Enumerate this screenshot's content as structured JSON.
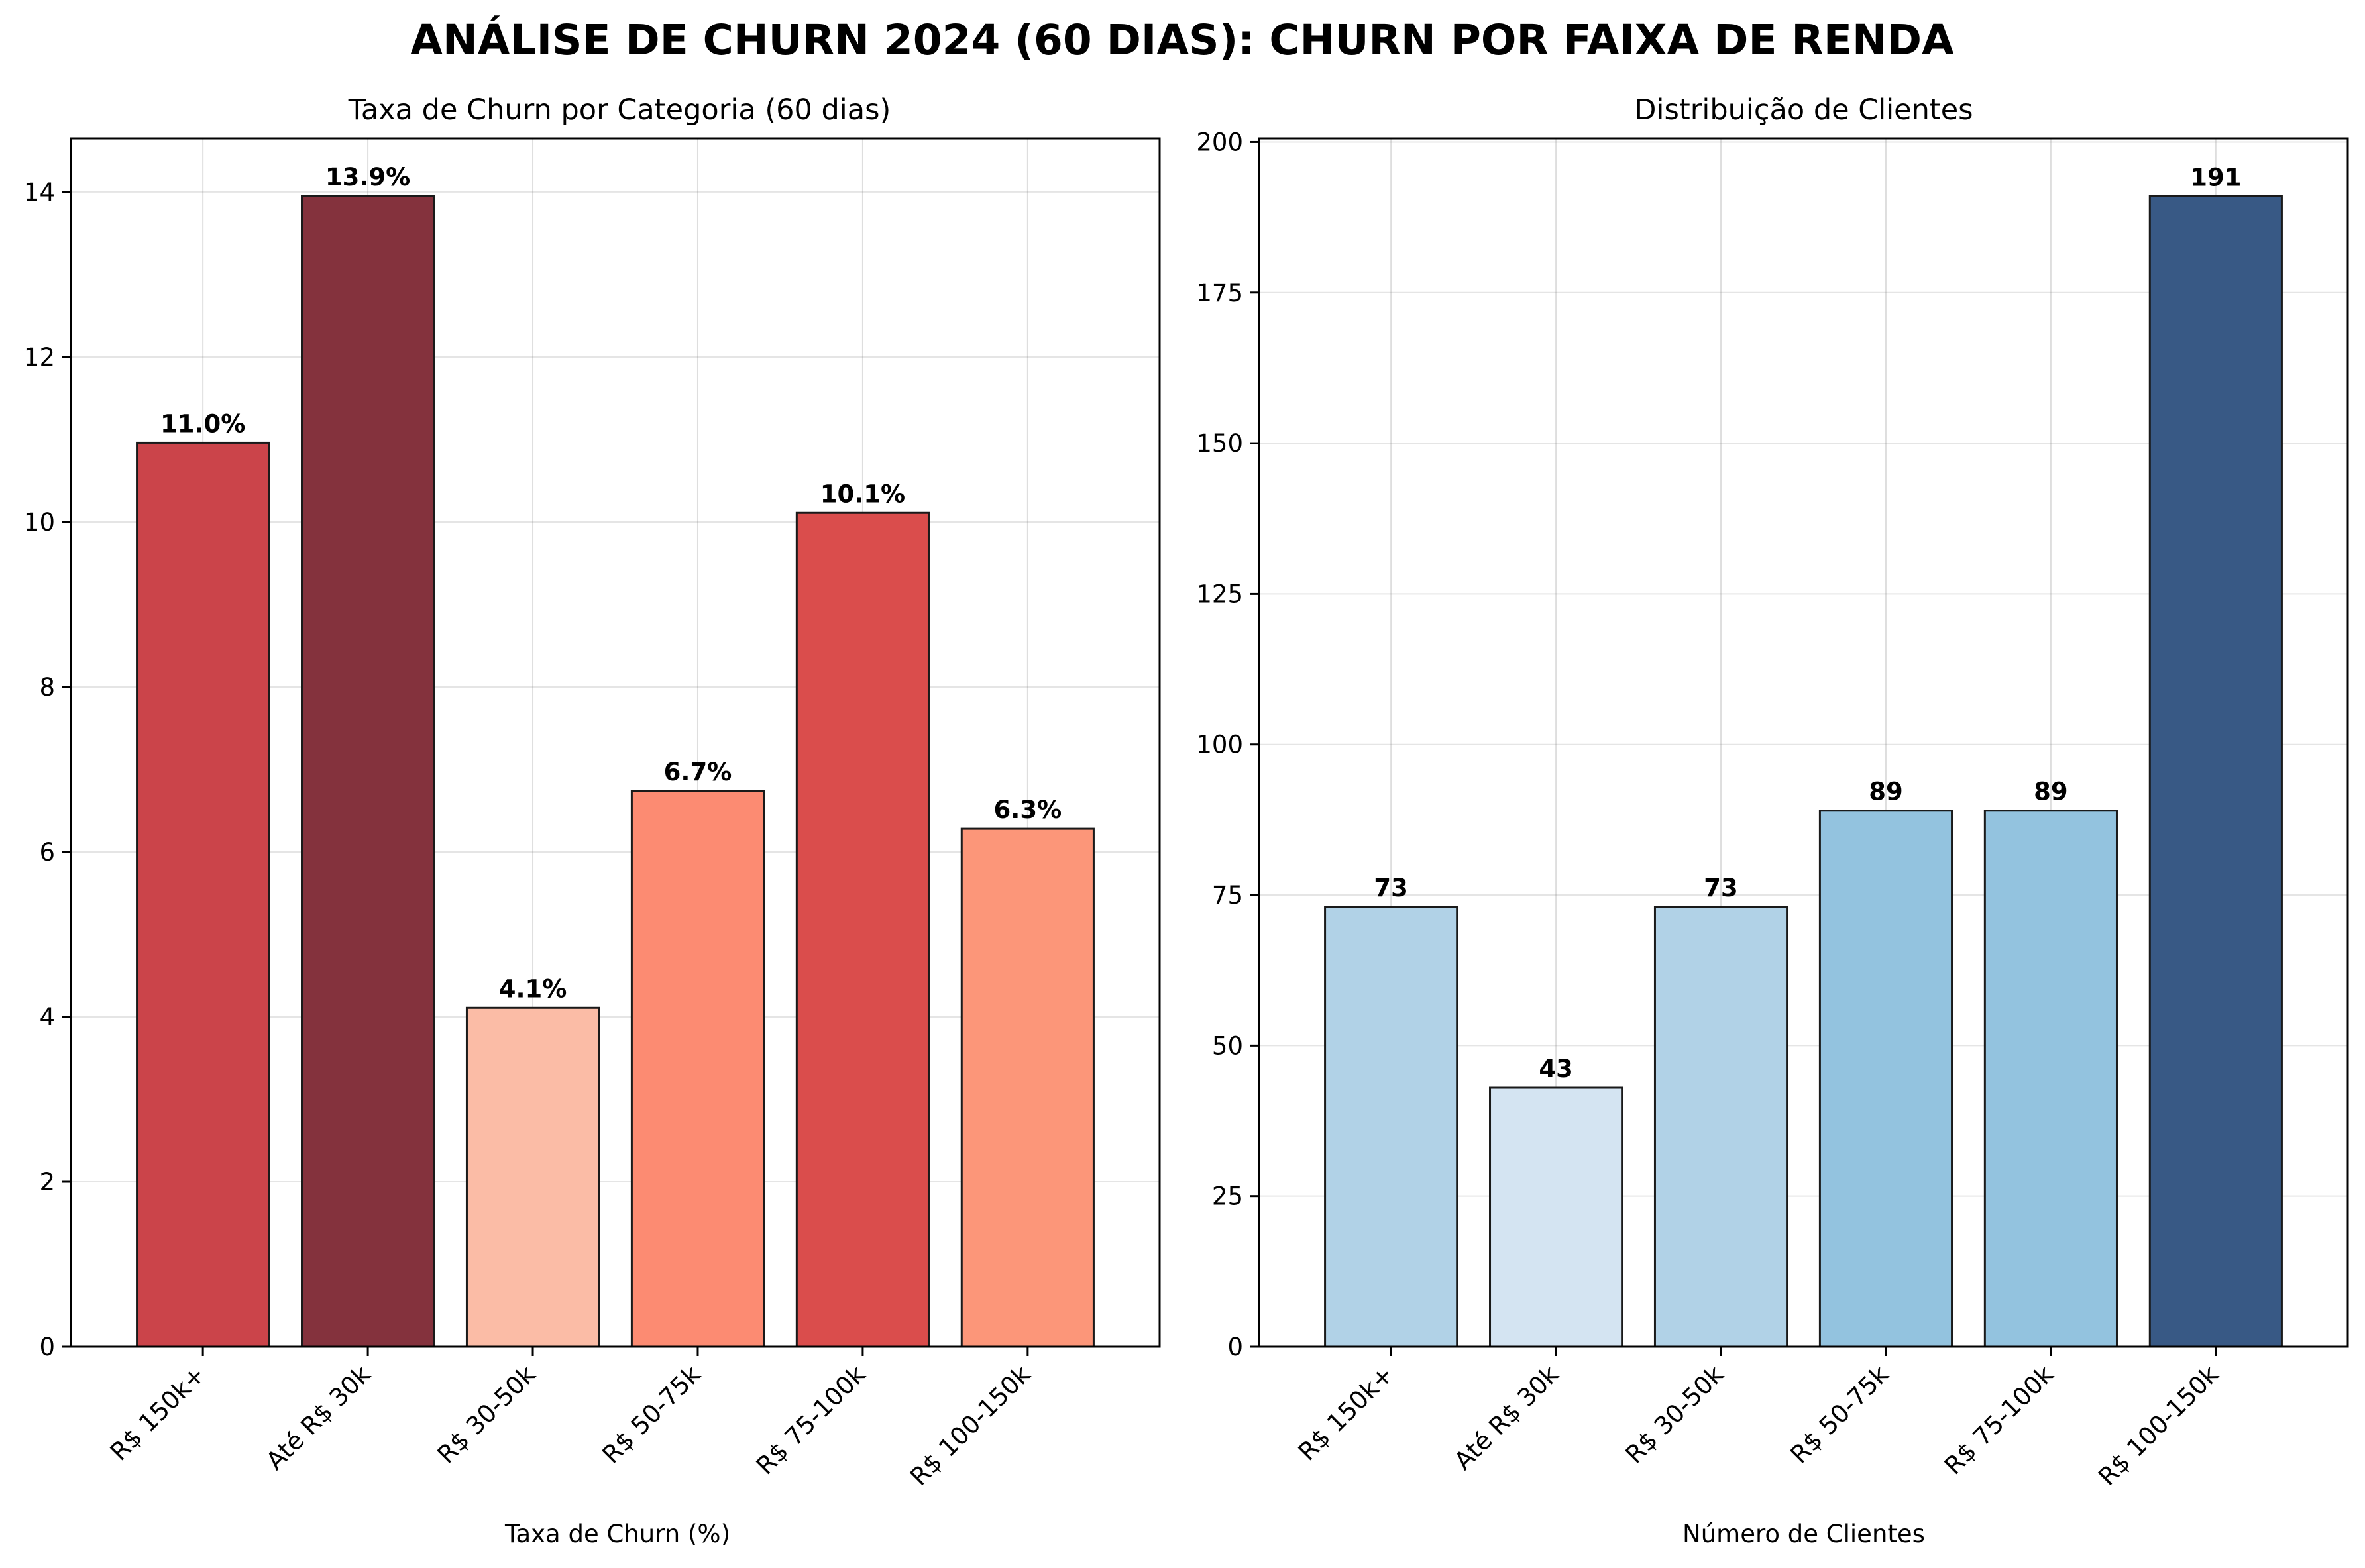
{
  "title": "ANÁLISE DE CHURN 2024 (60 DIAS): CHURN POR FAIXA DE RENDA",
  "chart_data": [
    {
      "type": "bar",
      "title": "Taxa de Churn por Categoria (60 dias)",
      "xlabel": "Taxa de Churn (%)",
      "ylabel": "",
      "categories": [
        "R$ 150k+",
        "Até R$ 30k",
        "R$ 30-50k",
        "R$ 50-75k",
        "R$ 75-100k",
        "R$ 100-150k"
      ],
      "values": [
        10.96,
        13.95,
        4.11,
        6.74,
        10.11,
        6.28
      ],
      "value_labels": [
        "11.0%",
        "13.9%",
        "4.1%",
        "6.7%",
        "10.1%",
        "6.3%"
      ],
      "bar_colors": [
        "#cb444a",
        "#84323d",
        "#fbbca6",
        "#fc8b72",
        "#da4d4c",
        "#fc9679"
      ],
      "ylim": [
        0,
        14.65
      ],
      "yticks": [
        0,
        2,
        4,
        6,
        8,
        10,
        12,
        14
      ],
      "grid": true,
      "legend": "none"
    },
    {
      "type": "bar",
      "title": "Distribuição de Clientes",
      "xlabel": "Número de Clientes",
      "ylabel": "",
      "categories": [
        "R$ 150k+",
        "Até R$ 30k",
        "R$ 30-50k",
        "R$ 50-75k",
        "R$ 75-100k",
        "R$ 100-150k"
      ],
      "values": [
        73,
        43,
        73,
        89,
        89,
        191
      ],
      "value_labels": [
        "73",
        "43",
        "73",
        "89",
        "89",
        "191"
      ],
      "bar_colors": [
        "#b1d2e7",
        "#d4e4f2",
        "#b1d2e7",
        "#93c3df",
        "#93c3df",
        "#385985"
      ],
      "ylim": [
        0,
        200.6
      ],
      "yticks": [
        0,
        25,
        50,
        75,
        100,
        125,
        150,
        175,
        200
      ],
      "grid": true,
      "legend": "none"
    }
  ]
}
